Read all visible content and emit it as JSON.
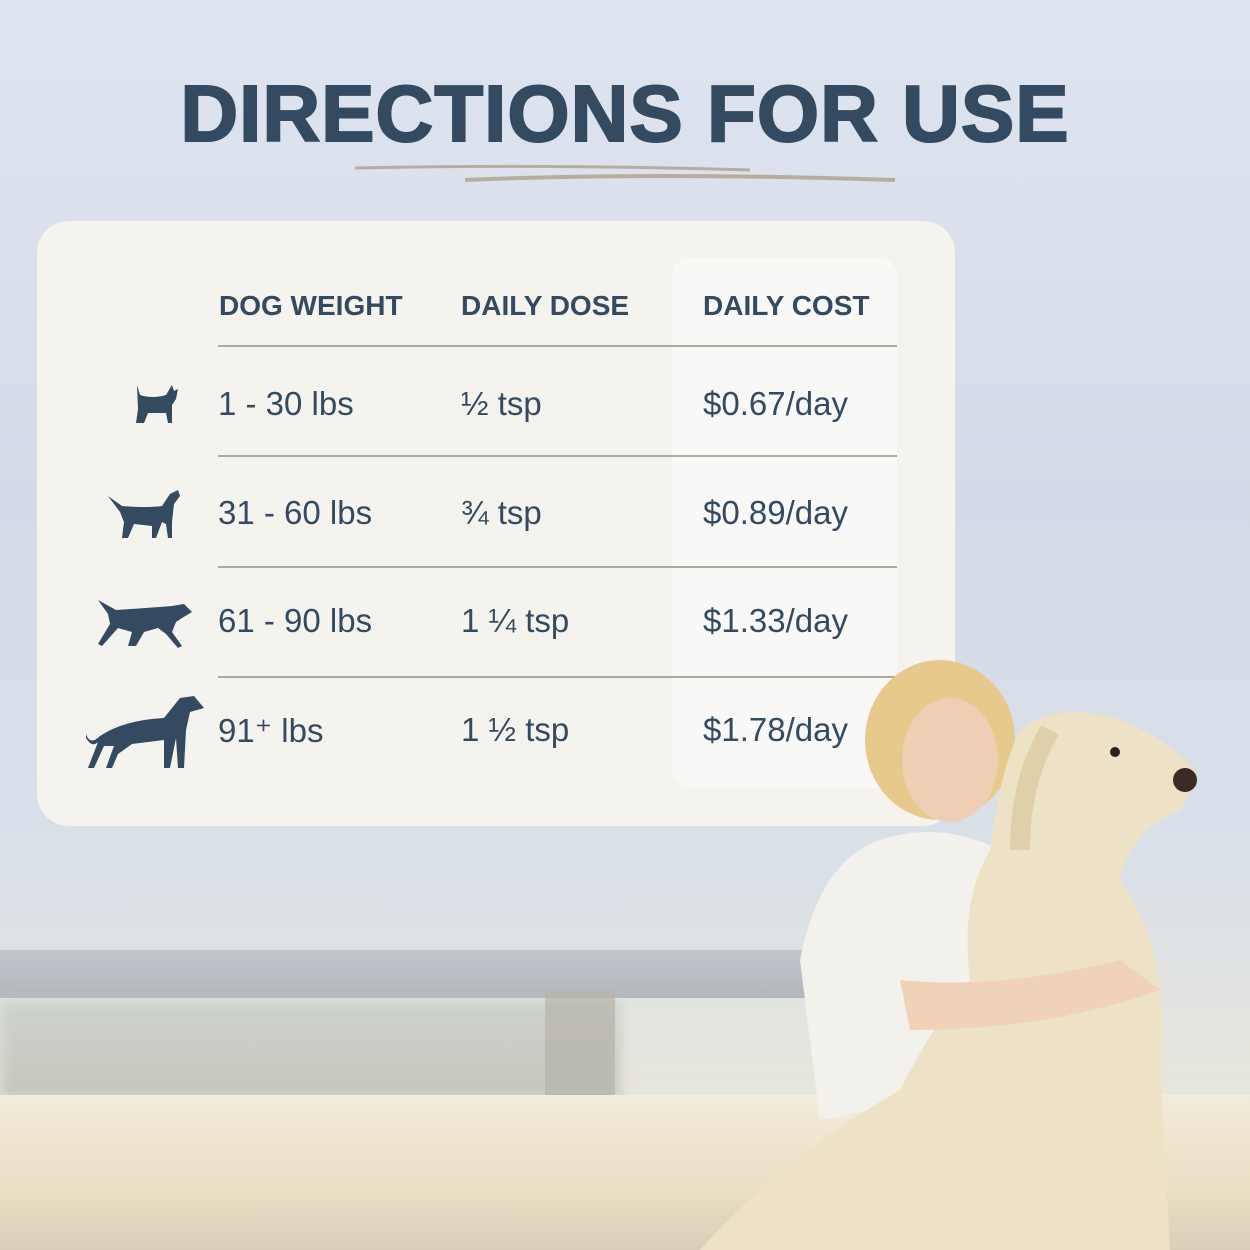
{
  "title": "DIRECTIONS FOR USE",
  "table": {
    "headers": [
      "DOG WEIGHT",
      "DAILY DOSE",
      "DAILY COST"
    ],
    "rows": [
      {
        "icon": "small-dog-icon",
        "weight": "1 - 30 lbs",
        "dose": "½ tsp",
        "cost": "$0.67/day"
      },
      {
        "icon": "medium-dog-icon",
        "weight": "31 - 60 lbs",
        "dose": "¾ tsp",
        "cost": "$0.89/day"
      },
      {
        "icon": "large-dog-icon",
        "weight": "61 - 90 lbs",
        "dose": "1 ¼ tsp",
        "cost": "$1.33/day"
      },
      {
        "icon": "giant-dog-icon",
        "weight": "91⁺ lbs",
        "dose": "1 ½ tsp",
        "cost": "$1.78/day"
      }
    ]
  },
  "colors": {
    "text": "#344a60",
    "card": "#f4f3ee",
    "accent_line": "#b8ad9c"
  }
}
